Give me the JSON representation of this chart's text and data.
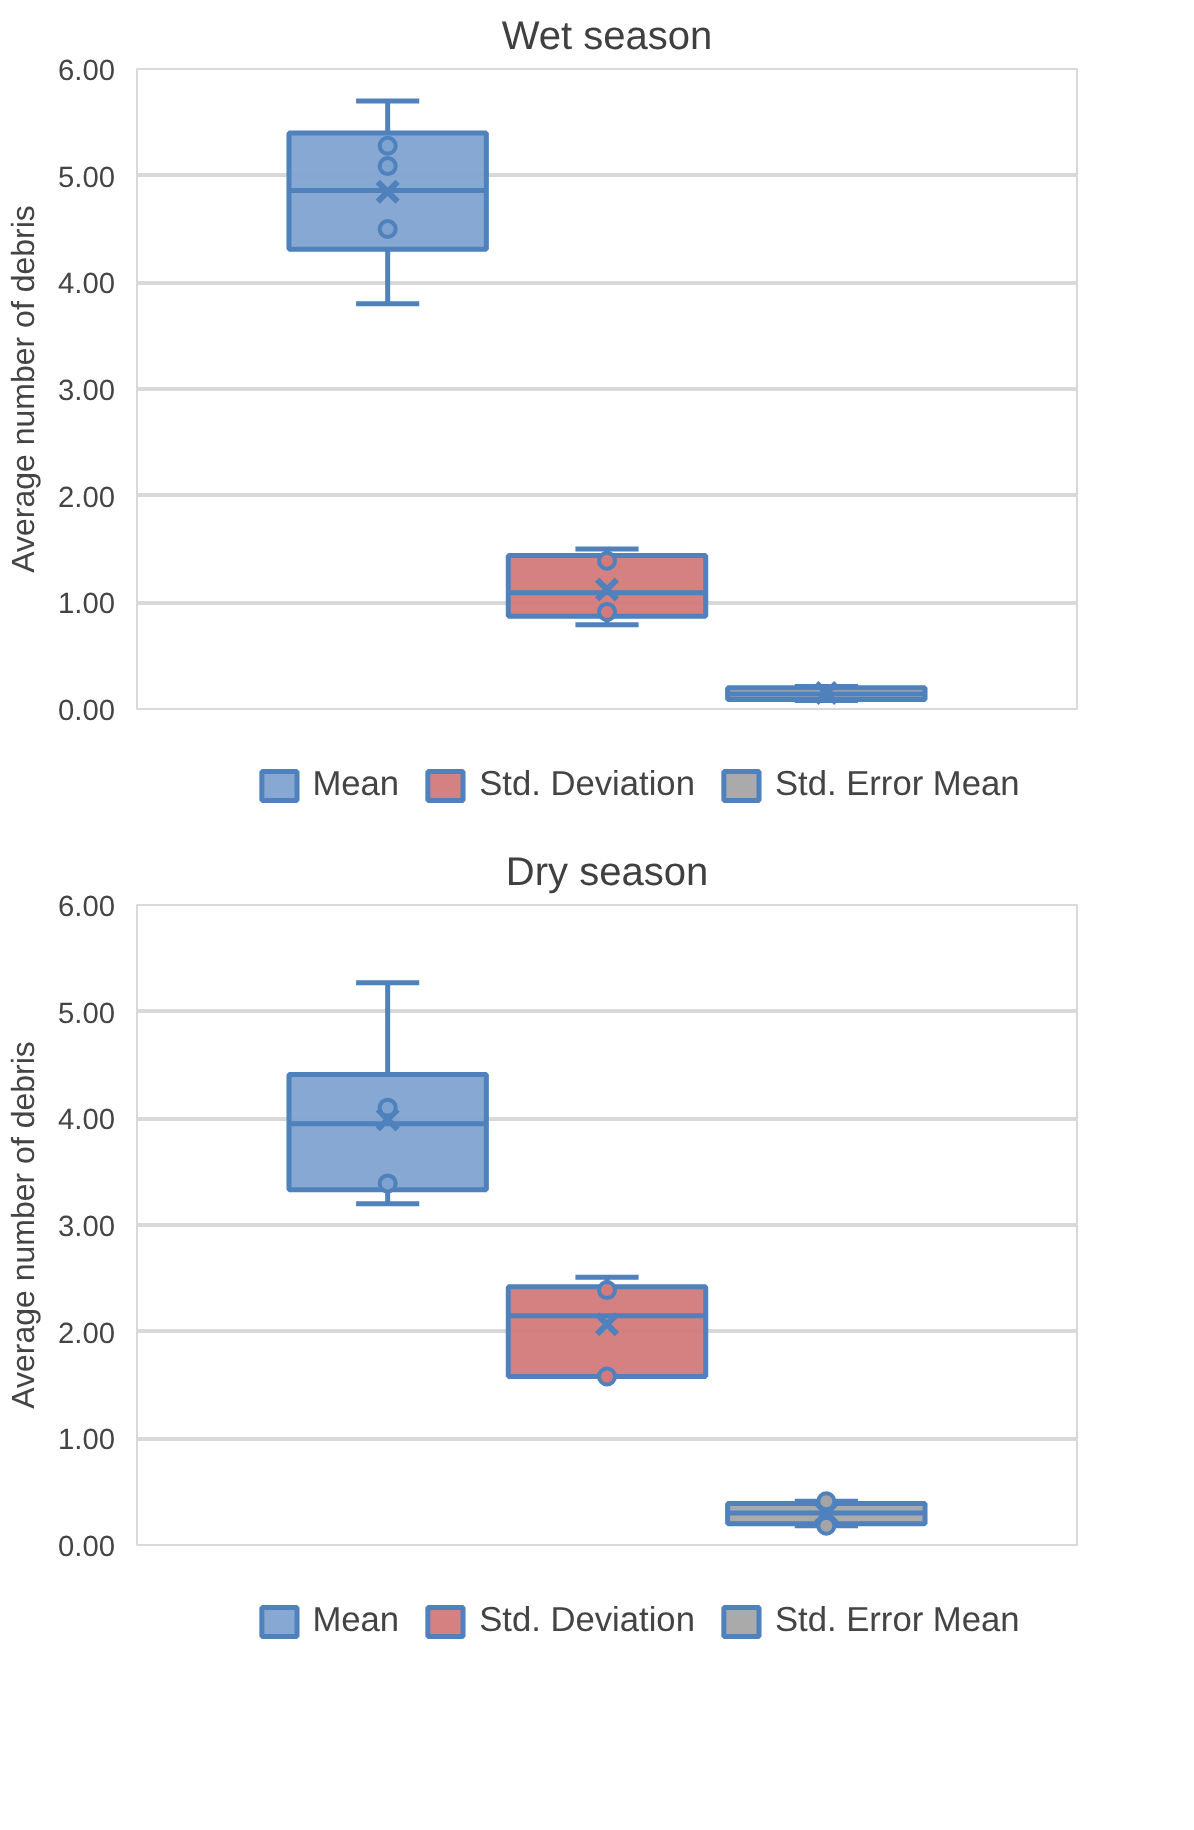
{
  "chart_data": [
    {
      "type": "box",
      "title": "Wet season",
      "ylabel": "Average number of debris",
      "categories": [
        null
      ],
      "ylim": [
        0,
        6
      ],
      "yticks": [
        {
          "value": 0,
          "label": "0.00"
        },
        {
          "value": 1,
          "label": "1.00"
        },
        {
          "value": 2,
          "label": "2.00"
        },
        {
          "value": 3,
          "label": "3.00"
        },
        {
          "value": 4,
          "label": "4.00"
        },
        {
          "value": 5,
          "label": "5.00"
        },
        {
          "value": 6,
          "label": "6.00"
        }
      ],
      "grid": "y",
      "legend": "bottom",
      "series": [
        {
          "name": "Mean",
          "color": "#7fa3d0",
          "boxes": [
            {
              "low": 3.8,
              "q1": 4.31,
              "median": 4.86,
              "q3": 5.4,
              "high": 5.7,
              "mean": 4.85,
              "outliers": [
                5.28,
                5.09,
                4.5
              ]
            }
          ]
        },
        {
          "name": "Std. Deviation",
          "color": "#d47a7a",
          "boxes": [
            {
              "low": 0.79,
              "q1": 0.87,
              "median": 1.09,
              "q3": 1.44,
              "high": 1.5,
              "mean": 1.12,
              "outliers": [
                1.39,
                0.91
              ]
            }
          ]
        },
        {
          "name": "Std. Error Mean",
          "color": "#a5a5a5",
          "boxes": [
            {
              "low": 0.08,
              "q1": 0.09,
              "median": 0.14,
              "q3": 0.2,
              "high": 0.21,
              "mean": 0.15
            }
          ]
        }
      ]
    },
    {
      "type": "box",
      "title": "Dry season",
      "ylabel": "Average number of debris",
      "categories": [
        null
      ],
      "ylim": [
        0,
        6
      ],
      "yticks": [
        {
          "value": 0,
          "label": "0.00"
        },
        {
          "value": 1,
          "label": "1.00"
        },
        {
          "value": 2,
          "label": "2.00"
        },
        {
          "value": 3,
          "label": "3.00"
        },
        {
          "value": 4,
          "label": "4.00"
        },
        {
          "value": 5,
          "label": "5.00"
        },
        {
          "value": 6,
          "label": "6.00"
        }
      ],
      "grid": "y",
      "legend": "bottom",
      "series": [
        {
          "name": "Mean",
          "color": "#7fa3d0",
          "boxes": [
            {
              "low": 3.2,
              "q1": 3.33,
              "median": 3.95,
              "q3": 4.41,
              "high": 5.27,
              "mean": 3.99,
              "outliers": [
                4.1,
                3.39
              ]
            }
          ]
        },
        {
          "name": "Std. Deviation",
          "color": "#d47a7a",
          "boxes": [
            {
              "low": 1.58,
              "q1": 1.58,
              "median": 2.15,
              "q3": 2.42,
              "high": 2.51,
              "mean": 2.07,
              "outliers": [
                2.39,
                1.58
              ]
            }
          ]
        },
        {
          "name": "Std. Error Mean",
          "color": "#a5a5a5",
          "boxes": [
            {
              "low": 0.18,
              "q1": 0.2,
              "median": 0.3,
              "q3": 0.39,
              "high": 0.41,
              "mean": 0.3,
              "outliers": [
                0.41,
                0.18
              ]
            }
          ]
        }
      ]
    }
  ]
}
